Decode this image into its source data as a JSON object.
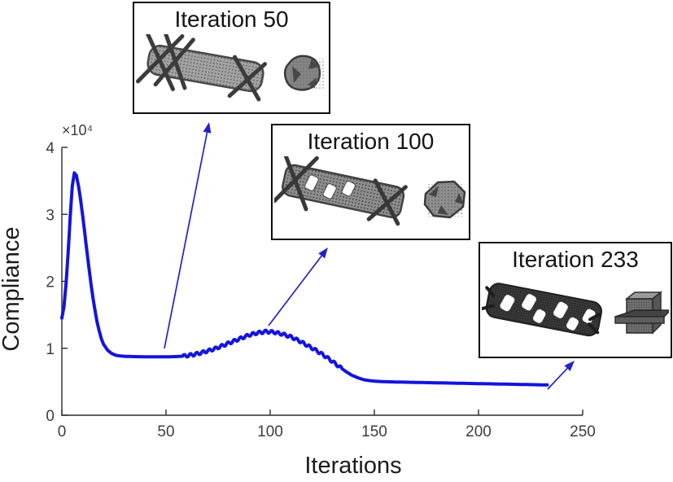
{
  "chart_data": {
    "type": "line",
    "title": "",
    "xlabel": "Iterations",
    "ylabel": "Compliance",
    "y_scale_label": "×10⁴",
    "xlim": [
      0,
      250
    ],
    "ylim": [
      0,
      40000
    ],
    "x_ticks": [
      0,
      50,
      100,
      150,
      200,
      250
    ],
    "x_tick_labels": [
      "0",
      "50",
      "100",
      "150",
      "200",
      "250"
    ],
    "y_ticks": [
      0,
      10000,
      20000,
      30000,
      40000
    ],
    "y_tick_labels": [
      "0",
      "1",
      "2",
      "3",
      "4"
    ],
    "grid": false,
    "legend": null,
    "series": [
      {
        "name": "Compliance",
        "color": "#1414dc",
        "line_width": 4,
        "x": [
          0,
          1,
          2,
          3,
          4,
          5,
          6,
          7,
          8,
          9,
          10,
          11,
          12,
          13,
          14,
          15,
          16,
          17,
          18,
          19,
          20,
          22,
          24,
          26,
          28,
          30,
          35,
          40,
          45,
          50,
          55,
          58,
          60,
          63,
          66,
          70,
          74,
          78,
          82,
          86,
          90,
          94,
          98,
          102,
          106,
          110,
          114,
          118,
          122,
          126,
          130,
          133,
          136,
          139,
          142,
          145,
          148,
          152,
          156,
          160,
          170,
          180,
          190,
          200,
          210,
          220,
          230,
          233
        ],
        "y": [
          14500,
          16200,
          19500,
          24200,
          29500,
          34200,
          36200,
          35800,
          34200,
          32200,
          29800,
          27200,
          24600,
          22000,
          19600,
          17400,
          15500,
          13800,
          12500,
          11400,
          10600,
          9700,
          9200,
          8950,
          8850,
          8800,
          8750,
          8730,
          8720,
          8720,
          8760,
          8820,
          8900,
          9050,
          9250,
          9600,
          10000,
          10500,
          11000,
          11500,
          12000,
          12300,
          12500,
          12400,
          12100,
          11700,
          11100,
          10400,
          9700,
          8900,
          8000,
          7300,
          6600,
          6000,
          5600,
          5300,
          5150,
          5050,
          5000,
          4970,
          4900,
          4840,
          4780,
          4720,
          4660,
          4600,
          4540,
          4520
        ]
      }
    ],
    "oscillation": {
      "x_start": 58,
      "x_end": 134,
      "amplitude": 220,
      "period": 3,
      "note": "small ripples on the middle hump of the curve"
    }
  },
  "annotations": {
    "insets": [
      {
        "title": "Iteration 50"
      },
      {
        "title": "Iteration 100"
      },
      {
        "title": "Iteration 233"
      }
    ],
    "arrows": [
      {
        "from": [
          202,
          428
        ],
        "to": [
          257,
          150
        ]
      },
      {
        "from": [
          330,
          400
        ],
        "to": [
          403,
          304
        ]
      },
      {
        "from": [
          673,
          478
        ],
        "to": [
          706,
          443
        ]
      }
    ],
    "arrow_color": "#2222cc"
  },
  "axis": {
    "color": "#2b2b2b",
    "tick_label_color": "#3d3d3d"
  }
}
